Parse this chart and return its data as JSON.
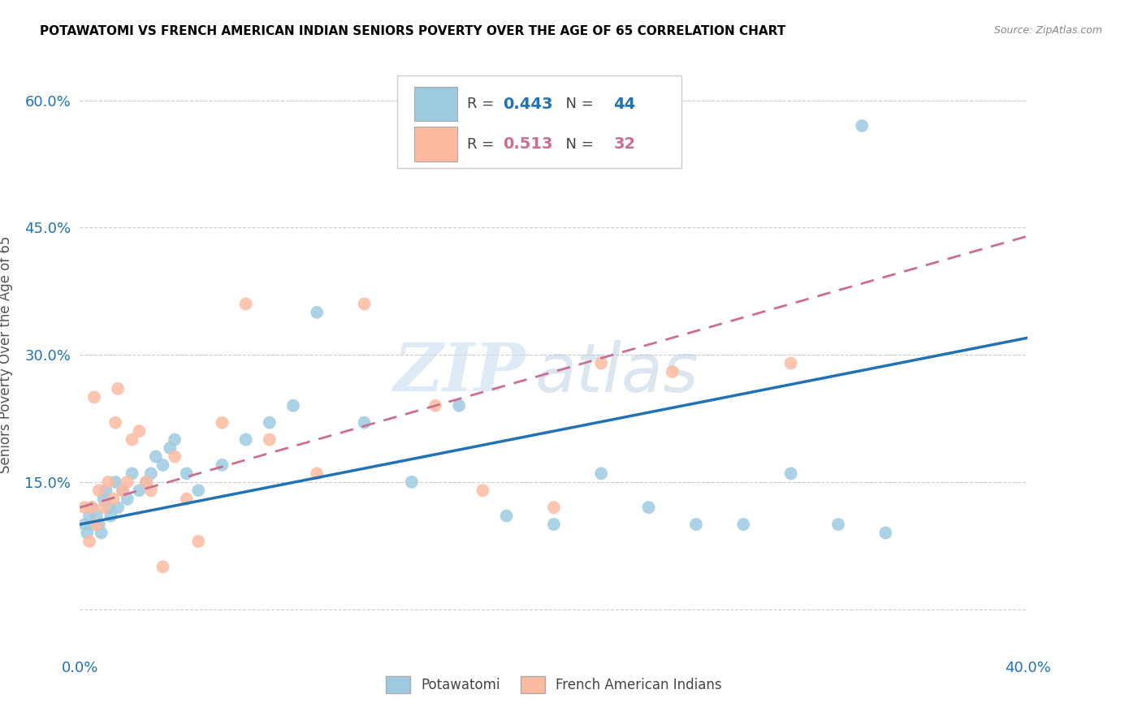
{
  "title": "POTAWATOMI VS FRENCH AMERICAN INDIAN SENIORS POVERTY OVER THE AGE OF 65 CORRELATION CHART",
  "source": "Source: ZipAtlas.com",
  "ylabel": "Seniors Poverty Over the Age of 65",
  "xlim": [
    0.0,
    0.4
  ],
  "ylim": [
    -0.05,
    0.65
  ],
  "ytick_positions": [
    0.0,
    0.15,
    0.3,
    0.45,
    0.6
  ],
  "ytick_labels": [
    "",
    "15.0%",
    "30.0%",
    "45.0%",
    "60.0%"
  ],
  "xtick_positions": [
    0.0,
    0.1,
    0.2,
    0.3,
    0.4
  ],
  "xtick_labels": [
    "0.0%",
    "",
    "",
    "",
    "40.0%"
  ],
  "blue_R": 0.443,
  "blue_N": 44,
  "pink_R": 0.513,
  "pink_N": 32,
  "blue_scatter_color": "#9ecae1",
  "pink_scatter_color": "#fcbba1",
  "blue_line_color": "#2171b5",
  "pink_line_color": "#cb6e8f",
  "watermark_zip": "ZIP",
  "watermark_atlas": "atlas",
  "blue_line_x": [
    0.0,
    0.4
  ],
  "blue_line_y": [
    0.1,
    0.32
  ],
  "pink_line_x": [
    0.0,
    0.4
  ],
  "pink_line_y": [
    0.12,
    0.44
  ],
  "blue_x": [
    0.002,
    0.003,
    0.004,
    0.005,
    0.006,
    0.007,
    0.008,
    0.009,
    0.01,
    0.011,
    0.012,
    0.013,
    0.015,
    0.016,
    0.018,
    0.02,
    0.022,
    0.025,
    0.028,
    0.03,
    0.032,
    0.035,
    0.038,
    0.04,
    0.045,
    0.05,
    0.06,
    0.07,
    0.08,
    0.09,
    0.1,
    0.12,
    0.14,
    0.16,
    0.18,
    0.2,
    0.22,
    0.24,
    0.26,
    0.28,
    0.3,
    0.32,
    0.34,
    0.33
  ],
  "blue_y": [
    0.1,
    0.09,
    0.11,
    0.12,
    0.1,
    0.11,
    0.1,
    0.09,
    0.13,
    0.14,
    0.12,
    0.11,
    0.15,
    0.12,
    0.14,
    0.13,
    0.16,
    0.14,
    0.15,
    0.16,
    0.18,
    0.17,
    0.19,
    0.2,
    0.16,
    0.14,
    0.17,
    0.2,
    0.22,
    0.24,
    0.35,
    0.22,
    0.15,
    0.24,
    0.11,
    0.1,
    0.16,
    0.12,
    0.1,
    0.1,
    0.16,
    0.1,
    0.09,
    0.57
  ],
  "pink_x": [
    0.002,
    0.004,
    0.005,
    0.006,
    0.007,
    0.008,
    0.01,
    0.012,
    0.014,
    0.015,
    0.016,
    0.018,
    0.02,
    0.022,
    0.025,
    0.028,
    0.03,
    0.035,
    0.04,
    0.045,
    0.05,
    0.06,
    0.07,
    0.08,
    0.1,
    0.12,
    0.15,
    0.17,
    0.2,
    0.22,
    0.25,
    0.3
  ],
  "pink_y": [
    0.12,
    0.08,
    0.12,
    0.25,
    0.1,
    0.14,
    0.12,
    0.15,
    0.13,
    0.22,
    0.26,
    0.14,
    0.15,
    0.2,
    0.21,
    0.15,
    0.14,
    0.05,
    0.18,
    0.13,
    0.08,
    0.22,
    0.36,
    0.2,
    0.16,
    0.36,
    0.24,
    0.14,
    0.12,
    0.29,
    0.28,
    0.29
  ]
}
